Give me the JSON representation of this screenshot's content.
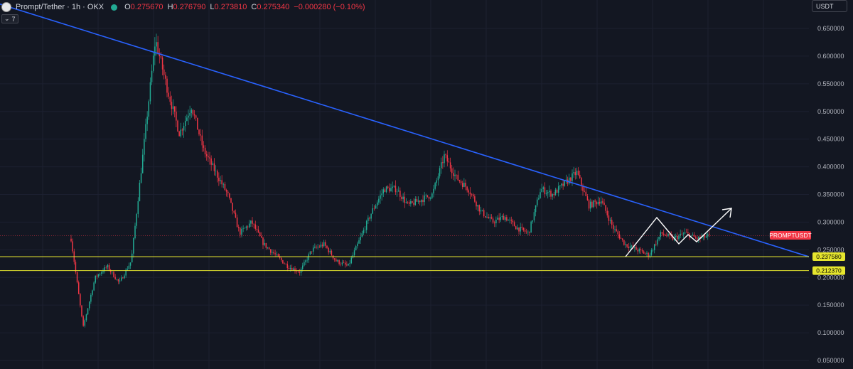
{
  "header": {
    "title": "Prompt/Tether · 1h · OKX",
    "ohlc": [
      {
        "key": "O",
        "value": "0.275670"
      },
      {
        "key": "H",
        "value": "0.276790"
      },
      {
        "key": "L",
        "value": "0.273810"
      },
      {
        "key": "C",
        "value": "0.275340"
      }
    ],
    "change": "−0.000280 (−0.10%)",
    "indicator_count": "7",
    "status_color": "#22ab94",
    "logo_icon": "prompt-logo-icon"
  },
  "currency_select": {
    "value": "USDT"
  },
  "price_tag": {
    "label": "PROMPTUSDT",
    "value": 0.27534,
    "color": "#f23645"
  },
  "levels": [
    {
      "label": "0.237580",
      "value": 0.23758,
      "color": "#e6e62e"
    },
    {
      "label": "0.212370",
      "value": 0.21237,
      "color": "#e6e62e"
    }
  ],
  "colors": {
    "background": "#131722",
    "up": "#22ab94",
    "down": "#f23645",
    "trendline": "#2962ff",
    "projection": "#ffffff"
  },
  "chart_data": {
    "type": "candlestick",
    "ylim": [
      0.04,
      0.68
    ],
    "yticks": [
      "0.650000",
      "0.600000",
      "0.550000",
      "0.500000",
      "0.450000",
      "0.400000",
      "0.350000",
      "0.300000",
      "0.250000",
      "0.200000",
      "0.150000",
      "0.100000",
      "0.050000"
    ],
    "price_path": [
      0.27,
      0.11,
      0.2,
      0.22,
      0.19,
      0.23,
      0.43,
      0.63,
      0.54,
      0.46,
      0.51,
      0.43,
      0.39,
      0.35,
      0.28,
      0.3,
      0.26,
      0.24,
      0.22,
      0.21,
      0.25,
      0.26,
      0.23,
      0.22,
      0.27,
      0.32,
      0.36,
      0.36,
      0.33,
      0.34,
      0.35,
      0.42,
      0.38,
      0.36,
      0.32,
      0.3,
      0.31,
      0.29,
      0.28,
      0.36,
      0.35,
      0.37,
      0.39,
      0.33,
      0.34,
      0.29,
      0.26,
      0.25,
      0.24,
      0.28,
      0.27,
      0.28,
      0.27,
      0.275
    ]
  }
}
